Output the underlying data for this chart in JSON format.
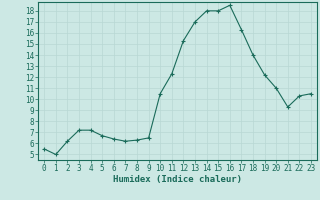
{
  "x": [
    0,
    1,
    2,
    3,
    4,
    5,
    6,
    7,
    8,
    9,
    10,
    11,
    12,
    13,
    14,
    15,
    16,
    17,
    18,
    19,
    20,
    21,
    22,
    23
  ],
  "y": [
    5.5,
    5.0,
    6.2,
    7.2,
    7.2,
    6.7,
    6.4,
    6.2,
    6.3,
    6.5,
    10.5,
    12.3,
    15.3,
    17.0,
    18.0,
    18.0,
    18.5,
    16.3,
    14.0,
    12.2,
    11.0,
    9.3,
    10.3,
    10.5
  ],
  "xlim": [
    -0.5,
    23.5
  ],
  "ylim": [
    4.5,
    18.8
  ],
  "yticks": [
    5,
    6,
    7,
    8,
    9,
    10,
    11,
    12,
    13,
    14,
    15,
    16,
    17,
    18
  ],
  "xticks": [
    0,
    1,
    2,
    3,
    4,
    5,
    6,
    7,
    8,
    9,
    10,
    11,
    12,
    13,
    14,
    15,
    16,
    17,
    18,
    19,
    20,
    21,
    22,
    23
  ],
  "xlabel": "Humidex (Indice chaleur)",
  "line_color": "#1a6b5a",
  "marker": "+",
  "bg_color": "#cce8e4",
  "grid_color": "#b8d8d4",
  "axis_color": "#1a6b5a",
  "label_fontsize": 5.5,
  "xlabel_fontsize": 6.5
}
